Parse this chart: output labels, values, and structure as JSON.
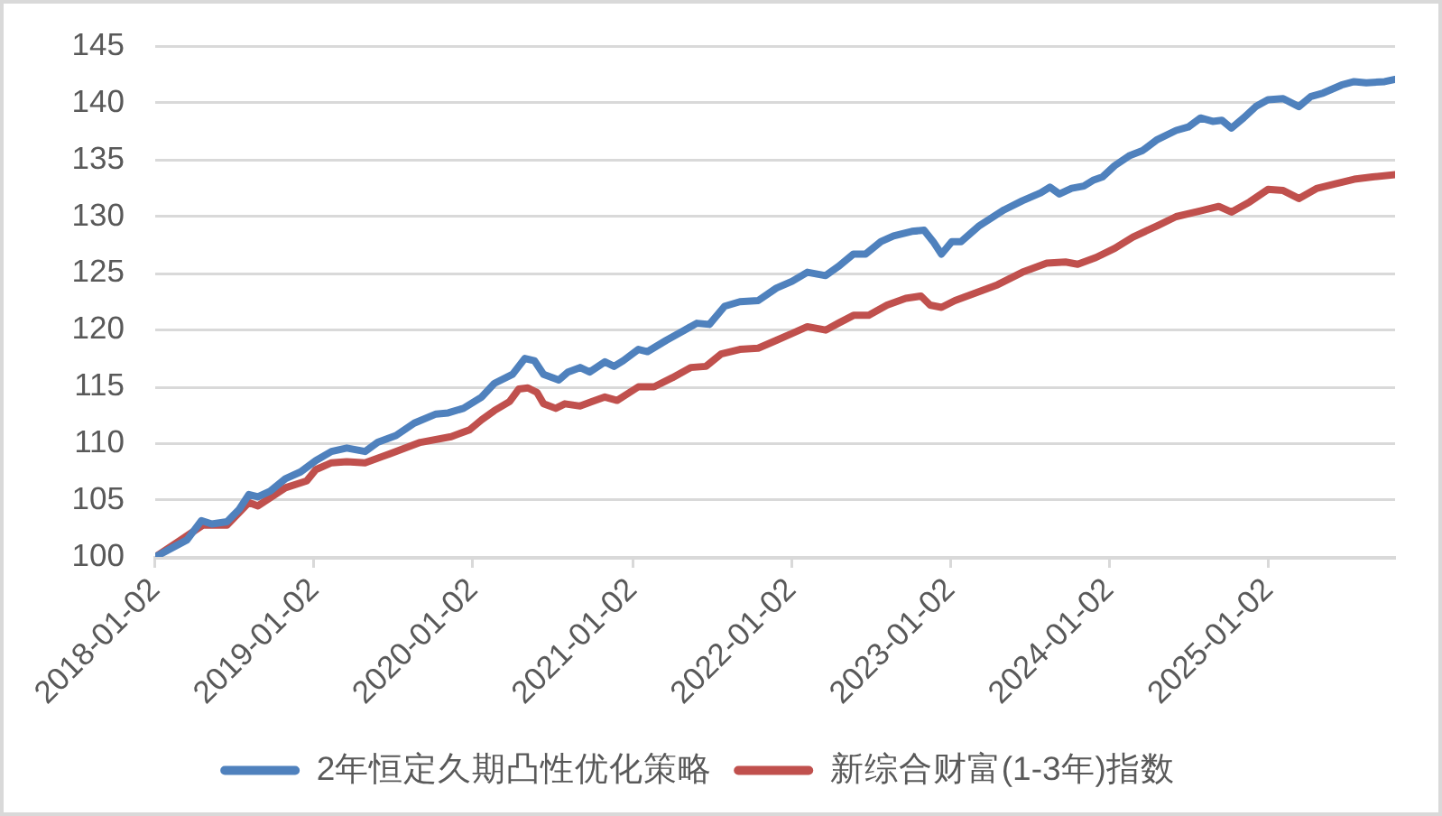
{
  "chart_data": {
    "type": "line",
    "series": [
      {
        "name": "2年恒定久期凸性优化策略",
        "color": "#4f81bd",
        "x": [
          "2018-01-02",
          "2018-03-16",
          "2018-04-18",
          "2018-05-12",
          "2018-06-16",
          "2018-07-14",
          "2018-08-05",
          "2018-08-26",
          "2018-09-23",
          "2018-10-28",
          "2018-12-02",
          "2019-01-06",
          "2019-02-11",
          "2019-03-18",
          "2019-04-29",
          "2019-05-28",
          "2019-07-09",
          "2019-08-20",
          "2019-10-09",
          "2019-11-06",
          "2019-12-11",
          "2020-01-22",
          "2020-02-20",
          "2020-04-02",
          "2020-04-30",
          "2020-05-22",
          "2020-06-12",
          "2020-07-17",
          "2020-08-07",
          "2020-09-04",
          "2020-09-26",
          "2020-10-31",
          "2020-11-21",
          "2020-12-12",
          "2021-01-16",
          "2021-02-06",
          "2021-03-21",
          "2021-05-02",
          "2021-05-30",
          "2021-06-28",
          "2021-08-02",
          "2021-09-06",
          "2021-10-18",
          "2021-11-29",
          "2022-01-04",
          "2022-02-08",
          "2022-03-22",
          "2022-04-20",
          "2022-05-25",
          "2022-06-22",
          "2022-07-27",
          "2022-08-25",
          "2022-10-06",
          "2022-11-03",
          "2022-11-24",
          "2022-12-13",
          "2023-01-06",
          "2023-01-27",
          "2023-03-10",
          "2023-05-06",
          "2023-06-17",
          "2023-07-29",
          "2023-08-19",
          "2023-09-10",
          "2023-10-08",
          "2023-11-05",
          "2023-11-26",
          "2023-12-18",
          "2024-01-15",
          "2024-02-19",
          "2024-03-18",
          "2024-04-22",
          "2024-06-04",
          "2024-07-02",
          "2024-07-30",
          "2024-08-27",
          "2024-09-17",
          "2024-10-09",
          "2024-11-06",
          "2024-12-04",
          "2025-01-01",
          "2025-02-05",
          "2025-03-13",
          "2025-04-10",
          "2025-05-08",
          "2025-06-19",
          "2025-07-18",
          "2025-08-15",
          "2025-09-26",
          "2025-10-20"
        ],
        "values": [
          100.0,
          101.5,
          103.2,
          102.9,
          103.1,
          104.2,
          105.5,
          105.3,
          105.8,
          106.9,
          107.5,
          108.5,
          109.3,
          109.6,
          109.3,
          110.1,
          110.7,
          111.8,
          112.6,
          112.7,
          113.1,
          114.1,
          115.3,
          116.1,
          117.5,
          117.3,
          116.1,
          115.6,
          116.3,
          116.7,
          116.3,
          117.2,
          116.8,
          117.3,
          118.3,
          118.1,
          119.1,
          120.0,
          120.6,
          120.5,
          122.1,
          122.5,
          122.6,
          123.7,
          124.3,
          125.1,
          124.8,
          125.6,
          126.7,
          126.7,
          127.8,
          128.3,
          128.7,
          128.8,
          127.8,
          126.7,
          127.8,
          127.8,
          129.2,
          130.6,
          131.4,
          132.1,
          132.6,
          132.0,
          132.5,
          132.7,
          133.2,
          133.5,
          134.5,
          135.4,
          135.8,
          136.8,
          137.6,
          137.9,
          138.7,
          138.4,
          138.5,
          137.8,
          138.7,
          139.7,
          140.3,
          140.4,
          139.7,
          140.6,
          140.9,
          141.6,
          141.9,
          141.8,
          141.9,
          142.1
        ]
      },
      {
        "name": "新综合财富(1-3年)指数",
        "color": "#c0504d",
        "x": [
          "2018-01-02",
          "2018-03-02",
          "2018-04-21",
          "2018-06-16",
          "2018-08-05",
          "2018-08-26",
          "2018-10-28",
          "2018-12-16",
          "2019-01-06",
          "2019-02-11",
          "2019-03-18",
          "2019-04-29",
          "2019-06-25",
          "2019-09-03",
          "2019-11-13",
          "2019-12-25",
          "2020-01-22",
          "2020-02-20",
          "2020-03-26",
          "2020-04-16",
          "2020-05-07",
          "2020-05-28",
          "2020-06-12",
          "2020-07-10",
          "2020-07-31",
          "2020-09-04",
          "2020-10-02",
          "2020-10-31",
          "2020-11-28",
          "2021-01-16",
          "2021-02-21",
          "2021-04-04",
          "2021-05-16",
          "2021-06-20",
          "2021-07-25",
          "2021-09-06",
          "2021-10-18",
          "2021-11-29",
          "2022-01-04",
          "2022-02-08",
          "2022-03-22",
          "2022-04-20",
          "2022-05-25",
          "2022-06-29",
          "2022-08-10",
          "2022-09-22",
          "2022-10-27",
          "2022-11-17",
          "2022-12-13",
          "2023-01-13",
          "2023-02-24",
          "2023-04-21",
          "2023-06-17",
          "2023-08-12",
          "2023-09-24",
          "2023-10-22",
          "2023-12-03",
          "2024-01-15",
          "2024-02-26",
          "2024-04-22",
          "2024-06-04",
          "2024-07-30",
          "2024-09-10",
          "2024-10-09",
          "2024-11-20",
          "2025-01-01",
          "2025-02-05",
          "2025-03-13",
          "2025-04-24",
          "2025-06-05",
          "2025-07-18",
          "2025-08-29",
          "2025-10-20"
        ],
        "values": [
          100.0,
          101.5,
          102.8,
          102.8,
          104.8,
          104.5,
          106.1,
          106.7,
          107.7,
          108.3,
          108.4,
          108.3,
          109.1,
          110.1,
          110.6,
          111.2,
          112.1,
          112.9,
          113.7,
          114.8,
          114.9,
          114.5,
          113.5,
          113.1,
          113.5,
          113.3,
          113.7,
          114.1,
          113.8,
          115.0,
          115.0,
          115.8,
          116.7,
          116.8,
          117.9,
          118.3,
          118.4,
          119.1,
          119.7,
          120.3,
          120.0,
          120.6,
          121.3,
          121.3,
          122.2,
          122.8,
          123.0,
          122.2,
          122.0,
          122.6,
          123.2,
          124.0,
          125.1,
          125.9,
          126.0,
          125.8,
          126.4,
          127.2,
          128.2,
          129.2,
          130.0,
          130.5,
          130.9,
          130.4,
          131.3,
          132.4,
          132.3,
          131.6,
          132.5,
          132.9,
          133.3,
          133.5,
          133.7
        ]
      }
    ],
    "xlim": [
      "2018-01-02",
      "2025-10-20"
    ],
    "xticks": [
      "2018-01-02",
      "2019-01-02",
      "2020-01-02",
      "2021-01-02",
      "2022-01-02",
      "2023-01-02",
      "2024-01-02",
      "2025-01-02"
    ],
    "ylim": [
      100,
      145
    ],
    "yticks": [
      100,
      105,
      110,
      115,
      120,
      125,
      130,
      135,
      140,
      145
    ],
    "grid": "y",
    "legend": "bottom",
    "marker": "none",
    "line_style": "solid"
  }
}
